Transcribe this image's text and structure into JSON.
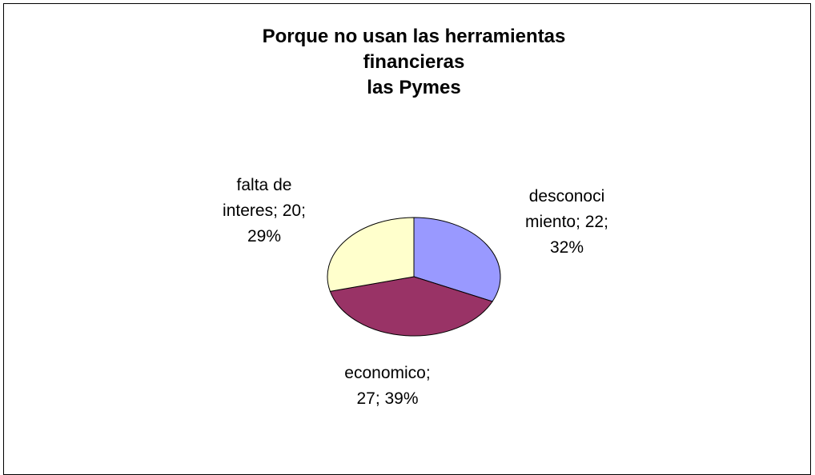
{
  "chart_data": {
    "type": "pie",
    "title": "Porque no usan las herramientas financieras\nlas Pymes",
    "categories": [
      "desconocimiento",
      "economico",
      "falta de interes"
    ],
    "values": [
      22,
      27,
      20
    ],
    "value_labels": [
      "desconoci\nmiento; 22;\n32%",
      "economico;\n27; 39%",
      "falta de\ninteres; 20;\n29%"
    ],
    "colors": [
      "#9999ff",
      "#993366",
      "#ffffcc"
    ]
  }
}
